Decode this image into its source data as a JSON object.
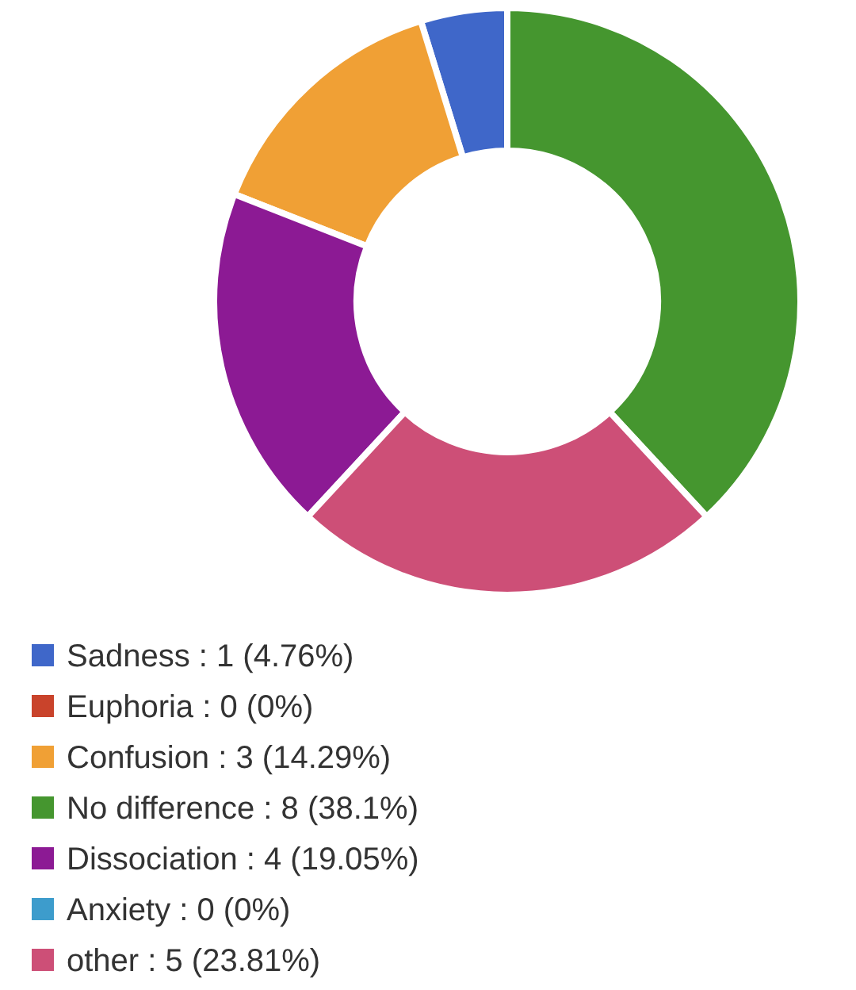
{
  "chart_data": {
    "type": "donut",
    "categories": [
      "Sadness",
      "Euphoria",
      "Confusion",
      "No difference",
      "Dissociation",
      "Anxiety",
      "other"
    ],
    "values": [
      1,
      0,
      3,
      8,
      4,
      0,
      5
    ],
    "value_labels": [
      "1 (4.76%)",
      "0 (0%)",
      "3 (14.29%)",
      "8 (38.1%)",
      "4 (19.05%)",
      "0 (0%)",
      "5 (23.81%)"
    ],
    "colors": [
      "#3f67c9",
      "#c9432b",
      "#f0a035",
      "#45962f",
      "#8c1a94",
      "#3d9ccc",
      "#cd4f77"
    ],
    "legend": "bottom left"
  }
}
